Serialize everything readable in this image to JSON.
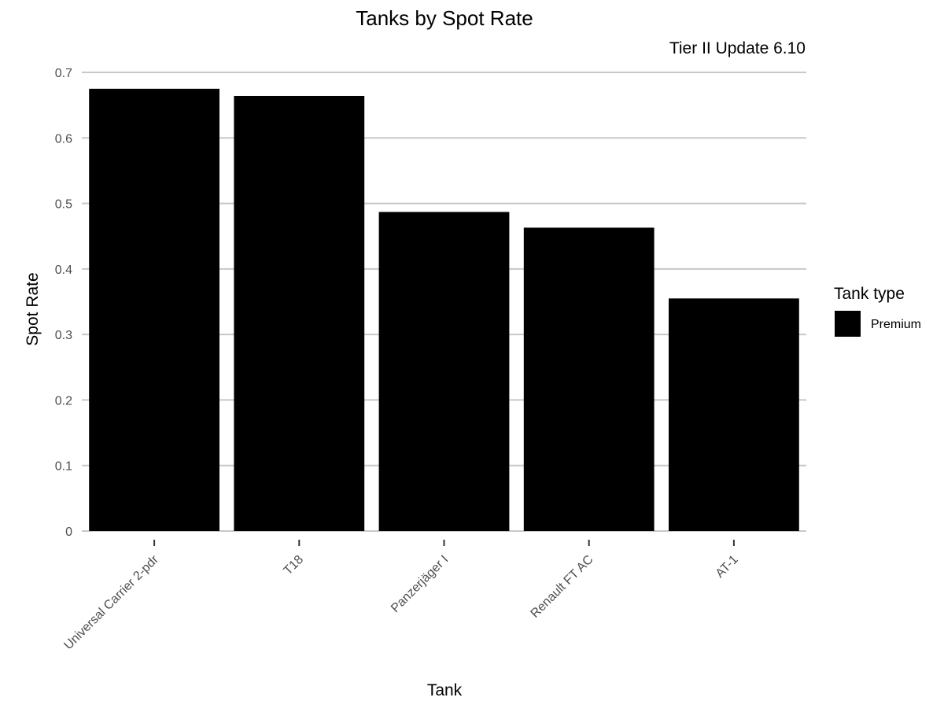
{
  "chart_data": {
    "type": "bar",
    "title": "Tanks by Spot Rate",
    "subtitle": "Tier II Update 6.10",
    "xlabel": "Tank",
    "ylabel": "Spot Rate",
    "categories": [
      "Universal Carrier 2-pdr",
      "T18",
      "Panzerjäger I",
      "Renault FT AC",
      "AT-1"
    ],
    "series": [
      {
        "name": "Premium",
        "color": "#000000",
        "values": [
          0.675,
          0.664,
          0.487,
          0.463,
          0.355
        ]
      }
    ],
    "ylim": [
      0,
      0.7
    ],
    "y_ticks": [
      0,
      0.1,
      0.2,
      0.3,
      0.4,
      0.5,
      0.6,
      0.7
    ],
    "y_tick_labels": [
      "0",
      "0.1",
      "0.2",
      "0.3",
      "0.4",
      "0.5",
      "0.6",
      "0.7"
    ],
    "grid": true,
    "grid_color": "#c8c8c8",
    "legend": {
      "title": "Tank type",
      "position": "right",
      "entries": [
        {
          "label": "Premium",
          "color": "#000000"
        }
      ]
    }
  }
}
